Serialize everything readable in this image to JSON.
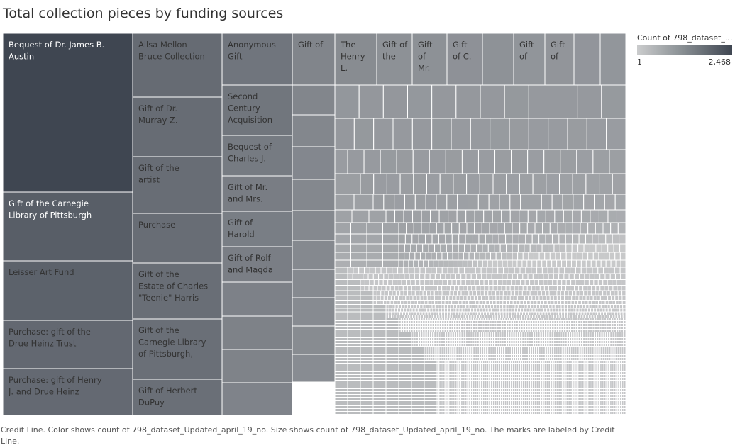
{
  "chart_data": {
    "type": "treemap",
    "title": "Total collection pieces by funding sources",
    "legend": {
      "title": "Count of 798_dataset_...",
      "min": "1",
      "max": "2,468",
      "colors": [
        "#cbcccd",
        "#3f4651"
      ]
    },
    "footer": "Credit Line.  Color shows count of 798_dataset_Updated_april_19_no.  Size shows count of 798_dataset_Updated_april_19_no.  The marks are labeled by Credit Line.",
    "labeled_items": [
      {
        "label": "Bequest of Dr. James B. Austin",
        "value": 2468
      },
      {
        "label": "Gift of the Carnegie Library of Pittsburgh",
        "value": 1015
      },
      {
        "label": "Leisser Art Fund",
        "value": 850
      },
      {
        "label": "Purchase: gift of the Drue Heinz Trust",
        "value": 660
      },
      {
        "label": "Purchase: gift of Henry J. and Drue Heinz Foundation",
        "value": 633
      },
      {
        "label": "Ailsa Mellon Bruce Collection",
        "value": 595
      },
      {
        "label": "Gift of Dr. Murray Z. Rosenberg",
        "value": 565
      },
      {
        "label": "Gift of the artist",
        "value": 550
      },
      {
        "label": "Purchase",
        "value": 540
      },
      {
        "label": "Gift of the Estate of Charles \"Teenie\" Harris",
        "value": 515
      },
      {
        "label": "Gift of the Carnegie Library of Pittsburgh, Lorant",
        "value": 505
      },
      {
        "label": "Gift of Herbert DuPuy",
        "value": 500
      },
      {
        "label": "Anonymous Gift",
        "value": 385
      },
      {
        "label": "Second Century Acquisition",
        "value": 375
      },
      {
        "label": "Bequest of Charles J.",
        "value": 300
      },
      {
        "label": "Gift of Mr. and Mrs. George",
        "value": 270
      },
      {
        "label": "Gift of Harold Obernauer",
        "value": 265
      },
      {
        "label": "Gift of Rolf and Magda",
        "value": 262
      },
      {
        "label": "Gift of",
        "value": 190
      },
      {
        "label": "The Henry L.",
        "value": 140
      },
      {
        "label": "Gift of the",
        "value": 110
      },
      {
        "label": "Gift of Mr.",
        "value": 107
      },
      {
        "label": "Gift of C.",
        "value": 106
      },
      {
        "label": "Gift of",
        "value": 90
      },
      {
        "label": "Gift of",
        "value": 88
      }
    ]
  }
}
